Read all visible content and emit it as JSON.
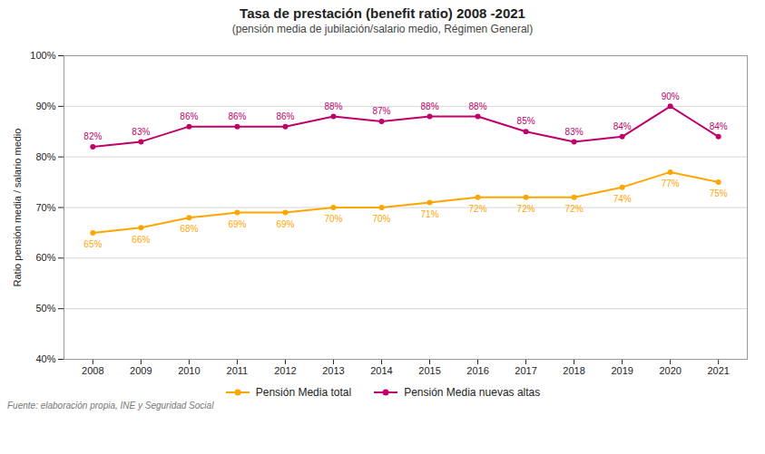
{
  "chart_data": {
    "type": "line",
    "title": "Tasa de prestación (benefit ratio) 2008 -2021",
    "subtitle": "(pensión media de jubilación/salario medio, Régimen General)",
    "y_label": "Ratio pensión media / salario medio",
    "caption": "Fuente: elaboración propia, INE y Seguridad Social",
    "x": [
      2008,
      2009,
      2010,
      2011,
      2012,
      2013,
      2014,
      2015,
      2016,
      2017,
      2018,
      2019,
      2020,
      2021
    ],
    "series": [
      {
        "name": "Pensión Media total",
        "color": "#FFA500",
        "marker": "circle",
        "values": [
          0.65,
          0.66,
          0.68,
          0.69,
          0.69,
          0.7,
          0.7,
          0.71,
          0.72,
          0.72,
          0.72,
          0.74,
          0.77,
          0.75
        ],
        "value_labels": [
          "65%",
          "66%",
          "68%",
          "69%",
          "69%",
          "70%",
          "70%",
          "71%",
          "72%",
          "72%",
          "72%",
          "74%",
          "77%",
          "75%"
        ]
      },
      {
        "name": "Pensión Media nuevas altas",
        "color": "#C0006A",
        "marker": "circle",
        "values": [
          0.82,
          0.83,
          0.86,
          0.86,
          0.86,
          0.88,
          0.87,
          0.88,
          0.88,
          0.85,
          0.83,
          0.84,
          0.9,
          0.84
        ],
        "value_labels": [
          "82%",
          "83%",
          "86%",
          "86%",
          "86%",
          "88%",
          "87%",
          "88%",
          "88%",
          "85%",
          "83%",
          "84%",
          "90%",
          "84%"
        ]
      }
    ],
    "xlim": [
      2007.4,
      2021.6
    ],
    "xticks": [
      2008,
      2009,
      2010,
      2011,
      2012,
      2013,
      2014,
      2015,
      2016,
      2017,
      2018,
      2019,
      2020,
      2021
    ],
    "ylim": [
      0.4,
      1.0
    ],
    "yticks": [
      {
        "value": 0.4,
        "label": "40%"
      },
      {
        "value": 0.5,
        "label": "50%"
      },
      {
        "value": 0.6,
        "label": "60%"
      },
      {
        "value": 0.7,
        "label": "70%"
      },
      {
        "value": 0.8,
        "label": "80%"
      },
      {
        "value": 0.9,
        "label": "90%"
      },
      {
        "value": 1.0,
        "label": "100%"
      }
    ],
    "grid": true,
    "legend": "bottom",
    "data_labels": true
  }
}
